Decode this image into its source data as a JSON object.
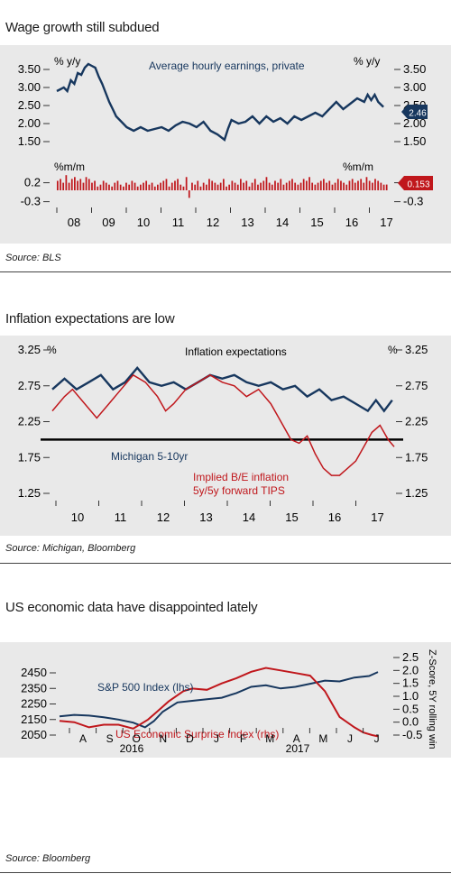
{
  "colors": {
    "navy": "#17375e",
    "red": "#c0171c",
    "bg": "#e9e9e9",
    "text": "#1a1a1a"
  },
  "panel1": {
    "title": "Wage growth still subdued",
    "source": "Source: BLS"
  },
  "panel2": {
    "title": "Inflation expectations are low",
    "source": "Source: Michigan, Bloomberg"
  },
  "panel3": {
    "title": "US economic data have disappointed lately",
    "source": "Source: Bloomberg"
  },
  "chart_data": [
    {
      "type": "line",
      "annotation": "Average hourly earnings, private",
      "left_unit": "% y/y",
      "right_unit": "% y/y",
      "ylim": [
        1.3,
        3.7
      ],
      "yticks": [
        "3.50",
        "3.00",
        "2.50",
        "2.00",
        "1.50"
      ],
      "x_ticks": [
        "08",
        "09",
        "10",
        "11",
        "12",
        "13",
        "14",
        "15",
        "16",
        "17"
      ],
      "end_label": "2.46",
      "series": [
        {
          "values": [
            [
              2008.0,
              2.9
            ],
            [
              2008.1,
              2.95
            ],
            [
              2008.2,
              3.0
            ],
            [
              2008.3,
              2.9
            ],
            [
              2008.4,
              3.2
            ],
            [
              2008.5,
              3.1
            ],
            [
              2008.6,
              3.4
            ],
            [
              2008.7,
              3.35
            ],
            [
              2008.8,
              3.55
            ],
            [
              2008.9,
              3.65
            ],
            [
              2009.0,
              3.6
            ],
            [
              2009.1,
              3.55
            ],
            [
              2009.2,
              3.3
            ],
            [
              2009.3,
              3.1
            ],
            [
              2009.4,
              2.85
            ],
            [
              2009.5,
              2.6
            ],
            [
              2009.6,
              2.4
            ],
            [
              2009.7,
              2.2
            ],
            [
              2009.8,
              2.1
            ],
            [
              2009.9,
              2.0
            ],
            [
              2010.0,
              1.9
            ],
            [
              2010.2,
              1.8
            ],
            [
              2010.4,
              1.9
            ],
            [
              2010.6,
              1.8
            ],
            [
              2010.8,
              1.85
            ],
            [
              2011.0,
              1.9
            ],
            [
              2011.2,
              1.8
            ],
            [
              2011.4,
              1.95
            ],
            [
              2011.6,
              2.05
            ],
            [
              2011.8,
              2.0
            ],
            [
              2012.0,
              1.9
            ],
            [
              2012.2,
              2.05
            ],
            [
              2012.4,
              1.8
            ],
            [
              2012.6,
              1.7
            ],
            [
              2012.8,
              1.55
            ],
            [
              2012.9,
              1.85
            ],
            [
              2013.0,
              2.1
            ],
            [
              2013.2,
              2.0
            ],
            [
              2013.4,
              2.05
            ],
            [
              2013.6,
              2.2
            ],
            [
              2013.8,
              2.0
            ],
            [
              2014.0,
              2.2
            ],
            [
              2014.2,
              2.05
            ],
            [
              2014.4,
              2.15
            ],
            [
              2014.6,
              2.0
            ],
            [
              2014.8,
              2.2
            ],
            [
              2015.0,
              2.1
            ],
            [
              2015.2,
              2.2
            ],
            [
              2015.4,
              2.3
            ],
            [
              2015.6,
              2.2
            ],
            [
              2015.8,
              2.4
            ],
            [
              2016.0,
              2.6
            ],
            [
              2016.2,
              2.4
            ],
            [
              2016.4,
              2.55
            ],
            [
              2016.6,
              2.7
            ],
            [
              2016.8,
              2.6
            ],
            [
              2016.9,
              2.8
            ],
            [
              2017.0,
              2.65
            ],
            [
              2017.1,
              2.8
            ],
            [
              2017.2,
              2.6
            ],
            [
              2017.35,
              2.46
            ]
          ]
        }
      ]
    },
    {
      "type": "bar",
      "left_unit": "%m/m",
      "right_unit": "%m/m",
      "ylim": [
        -0.45,
        0.5
      ],
      "yticks": [
        "0.2",
        "-0.3"
      ],
      "x_ticks": [
        "08",
        "09",
        "10",
        "11",
        "12",
        "13",
        "14",
        "15",
        "16",
        "17"
      ],
      "end_label": "0.153",
      "series": [
        {
          "values": [
            0.25,
            0.3,
            0.2,
            0.4,
            0.2,
            0.3,
            0.35,
            0.25,
            0.3,
            0.2,
            0.35,
            0.3,
            0.2,
            0.25,
            0.1,
            0.15,
            0.25,
            0.2,
            0.15,
            0.1,
            0.2,
            0.25,
            0.15,
            0.1,
            0.2,
            0.15,
            0.25,
            0.2,
            0.1,
            0.15,
            0.2,
            0.25,
            0.15,
            0.2,
            0.1,
            0.15,
            0.2,
            0.25,
            0.3,
            0.1,
            0.2,
            0.25,
            0.3,
            0.15,
            0.1,
            0.35,
            -0.2,
            0.2,
            0.15,
            0.25,
            0.1,
            0.2,
            0.15,
            0.3,
            0.25,
            0.2,
            0.15,
            0.2,
            0.3,
            0.1,
            0.15,
            0.25,
            0.2,
            0.15,
            0.3,
            0.2,
            0.25,
            0.1,
            0.2,
            0.3,
            0.15,
            0.2,
            0.25,
            0.35,
            0.2,
            0.15,
            0.25,
            0.2,
            0.3,
            0.15,
            0.2,
            0.25,
            0.3,
            0.2,
            0.15,
            0.2,
            0.3,
            0.25,
            0.35,
            0.2,
            0.15,
            0.2,
            0.25,
            0.3,
            0.2,
            0.25,
            0.15,
            0.2,
            0.3,
            0.25,
            0.2,
            0.15,
            0.25,
            0.3,
            0.2,
            0.25,
            0.3,
            0.2,
            0.35,
            0.25,
            0.2,
            0.3,
            0.25,
            0.2,
            0.15,
            0.153
          ]
        }
      ]
    },
    {
      "type": "line",
      "left_unit": "%",
      "right_unit": "%",
      "ylim": [
        1.1,
        3.35
      ],
      "yticks": [
        "3.25",
        "2.75",
        "2.25",
        "1.75",
        "1.25"
      ],
      "x_ticks": [
        "10",
        "11",
        "12",
        "13",
        "14",
        "15",
        "16",
        "17"
      ],
      "reference_line": 2.0,
      "annotations": [
        "Inflation expectations",
        "Michigan 5-10yr",
        "Implied B/E inflation",
        "5y/5y forward TIPS"
      ],
      "series": [
        {
          "values": [
            [
              2009.0,
              2.7
            ],
            [
              2009.3,
              2.85
            ],
            [
              2009.6,
              2.7
            ],
            [
              2009.9,
              2.8
            ],
            [
              2010.2,
              2.9
            ],
            [
              2010.5,
              2.7
            ],
            [
              2010.8,
              2.8
            ],
            [
              2011.1,
              3.0
            ],
            [
              2011.4,
              2.8
            ],
            [
              2011.7,
              2.75
            ],
            [
              2012.0,
              2.8
            ],
            [
              2012.3,
              2.7
            ],
            [
              2012.6,
              2.8
            ],
            [
              2012.9,
              2.9
            ],
            [
              2013.2,
              2.85
            ],
            [
              2013.5,
              2.9
            ],
            [
              2013.8,
              2.8
            ],
            [
              2014.1,
              2.75
            ],
            [
              2014.4,
              2.8
            ],
            [
              2014.7,
              2.7
            ],
            [
              2015.0,
              2.75
            ],
            [
              2015.3,
              2.6
            ],
            [
              2015.6,
              2.7
            ],
            [
              2015.9,
              2.55
            ],
            [
              2016.2,
              2.6
            ],
            [
              2016.5,
              2.5
            ],
            [
              2016.8,
              2.4
            ],
            [
              2017.0,
              2.55
            ],
            [
              2017.2,
              2.4
            ],
            [
              2017.4,
              2.55
            ]
          ]
        },
        {
          "values": [
            [
              2009.0,
              2.4
            ],
            [
              2009.3,
              2.6
            ],
            [
              2009.5,
              2.7
            ],
            [
              2009.8,
              2.5
            ],
            [
              2010.1,
              2.3
            ],
            [
              2010.4,
              2.5
            ],
            [
              2010.7,
              2.7
            ],
            [
              2011.0,
              2.9
            ],
            [
              2011.3,
              2.8
            ],
            [
              2011.6,
              2.6
            ],
            [
              2011.8,
              2.4
            ],
            [
              2012.0,
              2.5
            ],
            [
              2012.3,
              2.7
            ],
            [
              2012.6,
              2.8
            ],
            [
              2012.9,
              2.9
            ],
            [
              2013.2,
              2.8
            ],
            [
              2013.5,
              2.75
            ],
            [
              2013.8,
              2.6
            ],
            [
              2014.1,
              2.7
            ],
            [
              2014.4,
              2.5
            ],
            [
              2014.6,
              2.3
            ],
            [
              2014.9,
              2.0
            ],
            [
              2015.1,
              1.95
            ],
            [
              2015.3,
              2.05
            ],
            [
              2015.5,
              1.8
            ],
            [
              2015.7,
              1.6
            ],
            [
              2015.9,
              1.5
            ],
            [
              2016.1,
              1.5
            ],
            [
              2016.3,
              1.6
            ],
            [
              2016.5,
              1.7
            ],
            [
              2016.7,
              1.9
            ],
            [
              2016.9,
              2.1
            ],
            [
              2017.1,
              2.2
            ],
            [
              2017.3,
              2.0
            ],
            [
              2017.45,
              1.9
            ]
          ]
        }
      ]
    },
    {
      "type": "line",
      "left_axis": {
        "ylim": [
          2025,
          2525
        ],
        "yticks": [
          "2450",
          "2350",
          "2250",
          "2150",
          "2050"
        ]
      },
      "right_axis": {
        "label": "Z-Score, 5Y rolling win",
        "ylim": [
          -0.75,
          2.5
        ],
        "yticks": [
          "2.5",
          "2.0",
          "1.5",
          "1.0",
          "0.5",
          "0.0",
          "-0.5"
        ]
      },
      "x_ticks": [
        "A",
        "S",
        "O",
        "N",
        "D",
        "J",
        "F",
        "M",
        "A",
        "M",
        "J",
        "J"
      ],
      "x_years": [
        "2016",
        "2017"
      ],
      "series": [
        {
          "name": "S&P 500 Index (lhs)",
          "axis": "left",
          "values": [
            [
              0.0,
              2170
            ],
            [
              0.5,
              2180
            ],
            [
              1.0,
              2175
            ],
            [
              1.5,
              2165
            ],
            [
              2.0,
              2150
            ],
            [
              2.5,
              2130
            ],
            [
              2.9,
              2100
            ],
            [
              3.2,
              2140
            ],
            [
              3.5,
              2200
            ],
            [
              4.0,
              2260
            ],
            [
              4.5,
              2270
            ],
            [
              5.0,
              2280
            ],
            [
              5.5,
              2290
            ],
            [
              6.0,
              2320
            ],
            [
              6.5,
              2360
            ],
            [
              7.0,
              2370
            ],
            [
              7.5,
              2350
            ],
            [
              8.0,
              2360
            ],
            [
              8.5,
              2380
            ],
            [
              9.0,
              2400
            ],
            [
              9.5,
              2395
            ],
            [
              10.0,
              2420
            ],
            [
              10.5,
              2430
            ],
            [
              10.8,
              2455
            ]
          ]
        },
        {
          "name": "US Economic Surprise Index (rhs)",
          "axis": "right",
          "values": [
            [
              0.0,
              0.05
            ],
            [
              0.5,
              0.0
            ],
            [
              1.0,
              -0.2
            ],
            [
              1.5,
              -0.1
            ],
            [
              2.0,
              -0.1
            ],
            [
              2.5,
              -0.25
            ],
            [
              3.0,
              0.1
            ],
            [
              3.3,
              0.4
            ],
            [
              3.7,
              0.8
            ],
            [
              4.2,
              1.2
            ],
            [
              4.5,
              1.3
            ],
            [
              5.0,
              1.25
            ],
            [
              5.5,
              1.5
            ],
            [
              6.0,
              1.7
            ],
            [
              6.5,
              1.95
            ],
            [
              7.0,
              2.1
            ],
            [
              7.5,
              2.0
            ],
            [
              8.0,
              1.9
            ],
            [
              8.5,
              1.8
            ],
            [
              9.0,
              1.2
            ],
            [
              9.5,
              0.2
            ],
            [
              10.0,
              -0.2
            ],
            [
              10.3,
              -0.4
            ],
            [
              10.6,
              -0.5
            ],
            [
              10.8,
              -0.55
            ]
          ]
        }
      ]
    }
  ]
}
